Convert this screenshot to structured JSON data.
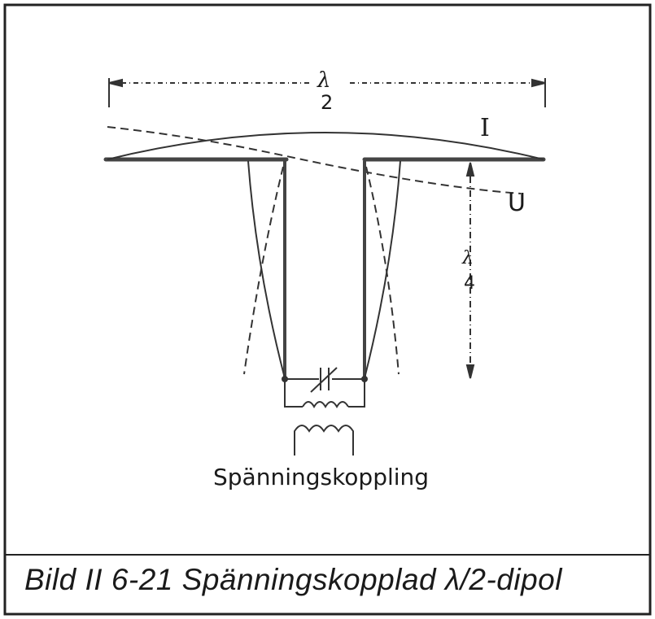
{
  "diagram": {
    "length_label_symbol": "λ",
    "length_label_divisor": "2",
    "current_label": "I",
    "voltage_label": "U",
    "quarter_label_symbol": "λ",
    "quarter_label_divisor": "4",
    "coupling_label": "Spänningskoppling"
  },
  "caption": "Bild II 6-21  Spänningskopplad λ/2-dipol"
}
